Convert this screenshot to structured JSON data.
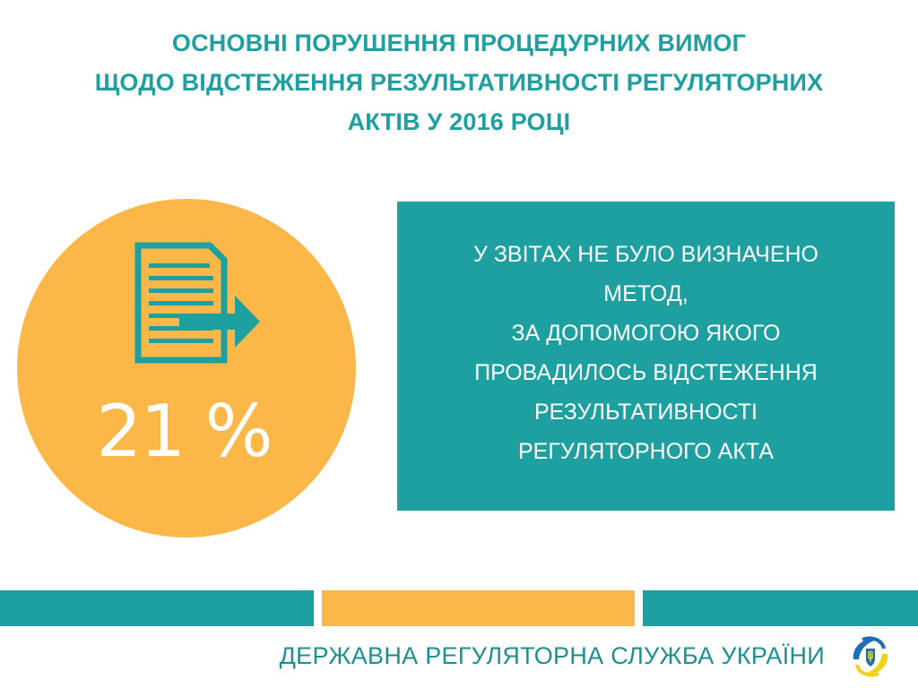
{
  "title": {
    "line1": "ОСНОВНІ ПОРУШЕННЯ ПРОЦЕДУРНИХ ВИМОГ",
    "line2": "ЩОДО ВІДСТЕЖЕННЯ РЕЗУЛЬТАТИВНОСТІ РЕГУЛЯТОРНИХ",
    "line3": "АКТІВ У 2016 РОЦІ"
  },
  "stat": {
    "percent": "21 %",
    "icon": "document-export-icon"
  },
  "description": {
    "lines": [
      "У ЗВІТАХ НЕ БУЛО ВИЗНАЧЕНО",
      "МЕТОД,",
      "ЗА ДОПОМОГОЮ ЯКОГО",
      "ПРОВАДИЛОСЬ ВІДСТЕЖЕННЯ",
      "РЕЗУЛЬТАТИВНОСТІ",
      "РЕГУЛЯТОРНОГО АКТА"
    ]
  },
  "footer": {
    "org_name": "ДЕРЖАВНА РЕГУЛЯТОРНА СЛУЖБА УКРАЇНИ",
    "logo": "dsr-logo-icon"
  },
  "colors": {
    "teal": "#1e9fa0",
    "orange": "#fbb848",
    "white": "#ffffff"
  }
}
